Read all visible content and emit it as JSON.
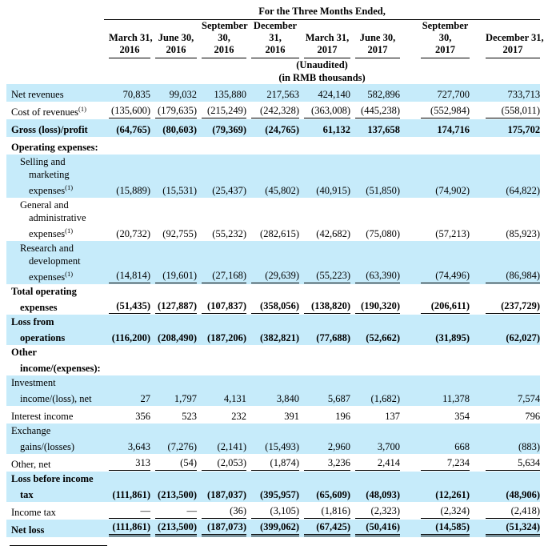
{
  "colors": {
    "highlight": "#c6ebfa",
    "text": "#000000",
    "rule": "#000000"
  },
  "table": {
    "caption": "For the Three Months Ended,",
    "unaudited": "(Unaudited)",
    "units": "(in RMB thousands)",
    "columns": [
      [
        "March 31,",
        "2016"
      ],
      [
        "June 30,",
        "2016"
      ],
      [
        "September",
        "30,",
        "2016"
      ],
      [
        "December",
        "31,",
        "2016"
      ],
      [
        "March 31,",
        "2017"
      ],
      [
        "June 30,",
        "2017"
      ],
      [
        "September",
        "30,",
        "2017"
      ],
      [
        "December 31,",
        "2017"
      ]
    ],
    "rows": [
      {
        "label": [
          "Net revenues"
        ],
        "sup": "",
        "indent": 0,
        "bold": false,
        "highlight": true,
        "underline": "none",
        "values": [
          "70,835",
          "99,032",
          "135,880",
          "217,563",
          "424,140",
          "582,896",
          "727,700",
          "733,713"
        ]
      },
      {
        "label": [
          "Cost of revenues"
        ],
        "sup": "(1)",
        "indent": 0,
        "bold": false,
        "highlight": false,
        "underline": "single",
        "values": [
          "(135,600)",
          "(179,635)",
          "(215,249)",
          "(242,328)",
          "(363,008)",
          "(445,238)",
          "(552,984)",
          "(558,011)"
        ]
      },
      {
        "label": [
          "Gross (loss)/profit"
        ],
        "sup": "",
        "indent": 0,
        "bold": true,
        "highlight": true,
        "underline": "none",
        "values": [
          "(64,765)",
          "(80,603)",
          "(79,369)",
          "(24,765)",
          "61,132",
          "137,658",
          "174,716",
          "175,702"
        ]
      },
      {
        "label": [
          "Operating expenses:"
        ],
        "sup": "",
        "indent": 0,
        "bold": true,
        "highlight": false,
        "underline": "none",
        "values": [
          "",
          "",
          "",
          "",
          "",
          "",
          "",
          ""
        ]
      },
      {
        "label": [
          "Selling and",
          "marketing",
          "expenses"
        ],
        "sup": "(1)",
        "indent": 1,
        "bold": false,
        "highlight": true,
        "underline": "none",
        "values": [
          "(15,889)",
          "(15,531)",
          "(25,437)",
          "(45,802)",
          "(40,915)",
          "(51,850)",
          "(74,902)",
          "(64,822)"
        ]
      },
      {
        "label": [
          "General and",
          "administrative",
          "expenses"
        ],
        "sup": "(1)",
        "indent": 1,
        "bold": false,
        "highlight": false,
        "underline": "none",
        "values": [
          "(20,732)",
          "(92,755)",
          "(55,232)",
          "(282,615)",
          "(42,682)",
          "(75,080)",
          "(57,213)",
          "(85,923)"
        ]
      },
      {
        "label": [
          "Research and",
          "development",
          "expenses"
        ],
        "sup": "(1)",
        "indent": 1,
        "bold": false,
        "highlight": true,
        "underline": "single",
        "values": [
          "(14,814)",
          "(19,601)",
          "(27,168)",
          "(29,639)",
          "(55,223)",
          "(63,390)",
          "(74,496)",
          "(86,984)"
        ]
      },
      {
        "label": [
          "Total operating",
          "expenses"
        ],
        "sup": "",
        "indent": 0,
        "bold": true,
        "highlight": false,
        "underline": "single",
        "values": [
          "(51,435)",
          "(127,887)",
          "(107,837)",
          "(358,056)",
          "(138,820)",
          "(190,320)",
          "(206,611)",
          "(237,729)"
        ]
      },
      {
        "label": [
          "Loss from",
          "operations"
        ],
        "sup": "",
        "indent": 0,
        "bold": true,
        "highlight": true,
        "underline": "none",
        "values": [
          "(116,200)",
          "(208,490)",
          "(187,206)",
          "(382,821)",
          "(77,688)",
          "(52,662)",
          "(31,895)",
          "(62,027)"
        ]
      },
      {
        "label": [
          "Other",
          "income/(expenses):"
        ],
        "sup": "",
        "indent": 0,
        "bold": true,
        "highlight": false,
        "underline": "none",
        "values": [
          "",
          "",
          "",
          "",
          "",
          "",
          "",
          ""
        ]
      },
      {
        "label": [
          "Investment",
          "income/(loss), net"
        ],
        "sup": "",
        "indent": 0,
        "bold": false,
        "highlight": true,
        "underline": "none",
        "values": [
          "27",
          "1,797",
          "4,131",
          "3,840",
          "5,687",
          "(1,682)",
          "11,378",
          "7,574"
        ]
      },
      {
        "label": [
          "Interest income"
        ],
        "sup": "",
        "indent": 0,
        "bold": false,
        "highlight": false,
        "underline": "none",
        "values": [
          "356",
          "523",
          "232",
          "391",
          "196",
          "137",
          "354",
          "796"
        ]
      },
      {
        "label": [
          "Exchange",
          "gains/(losses)"
        ],
        "sup": "",
        "indent": 0,
        "bold": false,
        "highlight": true,
        "underline": "none",
        "values": [
          "3,643",
          "(7,276)",
          "(2,141)",
          "(15,493)",
          "2,960",
          "3,700",
          "668",
          "(883)"
        ]
      },
      {
        "label": [
          "Other, net"
        ],
        "sup": "",
        "indent": 0,
        "bold": false,
        "highlight": false,
        "underline": "single",
        "values": [
          "313",
          "(54)",
          "(2,053)",
          "(1,874)",
          "3,236",
          "2,414",
          "7,234",
          "5,634"
        ]
      },
      {
        "label": [
          "Loss before income",
          "tax"
        ],
        "sup": "",
        "indent": 0,
        "bold": true,
        "highlight": true,
        "underline": "none",
        "values": [
          "(111,861)",
          "(213,500)",
          "(187,037)",
          "(395,957)",
          "(65,609)",
          "(48,093)",
          "(12,261)",
          "(48,906)"
        ]
      },
      {
        "label": [
          "Income tax"
        ],
        "sup": "",
        "indent": 0,
        "bold": false,
        "highlight": false,
        "underline": "single",
        "values": [
          "—",
          "—",
          "(36)",
          "(3,105)",
          "(1,816)",
          "(2,323)",
          "(2,324)",
          "(2,418)"
        ]
      },
      {
        "label": [
          "Net loss"
        ],
        "sup": "",
        "indent": 0,
        "bold": true,
        "highlight": true,
        "underline": "double",
        "values": [
          "(111,861)",
          "(213,500)",
          "(187,073)",
          "(399,062)",
          "(67,425)",
          "(50,416)",
          "(14,585)",
          "(51,324)"
        ]
      }
    ]
  }
}
